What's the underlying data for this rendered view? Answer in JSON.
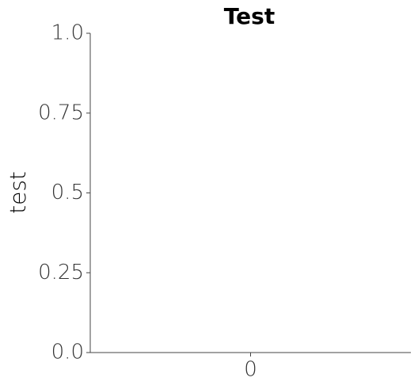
{
  "chart_data": {
    "type": "bar",
    "title": "Test",
    "ylabel": "test",
    "categories": [
      "0"
    ],
    "values": [
      null
    ],
    "ylim": [
      0,
      1
    ],
    "yticks": [
      {
        "value": 0,
        "label": "0.0"
      },
      0.25,
      0.5,
      0.75,
      {
        "value": 1,
        "label": "1.0"
      }
    ],
    "grid": false,
    "color": "#1f77b4"
  }
}
